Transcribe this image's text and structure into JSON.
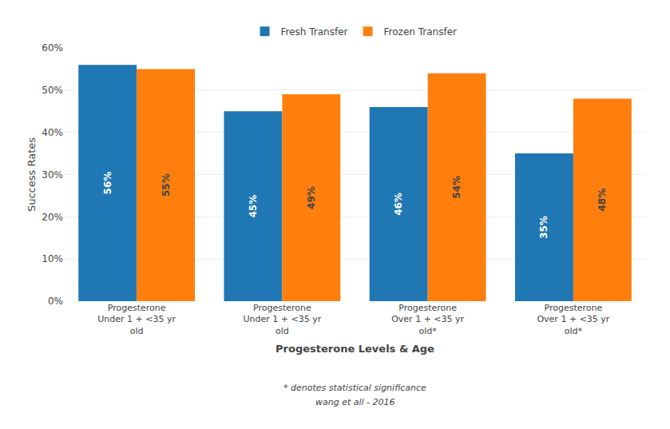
{
  "chart_data": {
    "type": "bar",
    "categories": [
      "Progesterone\nUnder 1 + <35 yr\nold",
      "Progesterone\nUnder 1 + <35 yr\nold",
      "Progesterone\nOver 1 + <35 yr\nold*",
      "Progesterone\nOver 1 + <35 yr\nold*"
    ],
    "series": [
      {
        "name": "Fresh Transfer",
        "values": [
          56,
          45,
          46,
          35
        ],
        "value_labels": [
          "56%",
          "45%",
          "46%",
          "35%"
        ]
      },
      {
        "name": "Frozen Transfer",
        "values": [
          55,
          49,
          54,
          48
        ],
        "value_labels": [
          "55%",
          "49%",
          "54%",
          "48%"
        ]
      }
    ],
    "ylabel": "Success Rates",
    "xlabel": "Progesterone Levels & Age",
    "annotations": [
      "* denotes statistical significance",
      "wang et all - 2016"
    ],
    "ylim": [
      0,
      60
    ],
    "yticks": [
      {
        "value": 0,
        "label": "0%"
      },
      {
        "value": 10,
        "label": "10%"
      },
      {
        "value": 20,
        "label": "20%"
      },
      {
        "value": 30,
        "label": "30%"
      },
      {
        "value": 40,
        "label": "40%"
      },
      {
        "value": 50,
        "label": "50%"
      },
      {
        "value": 60,
        "label": "60%"
      }
    ],
    "grid": true,
    "legend": "top",
    "data_labels": true
  }
}
